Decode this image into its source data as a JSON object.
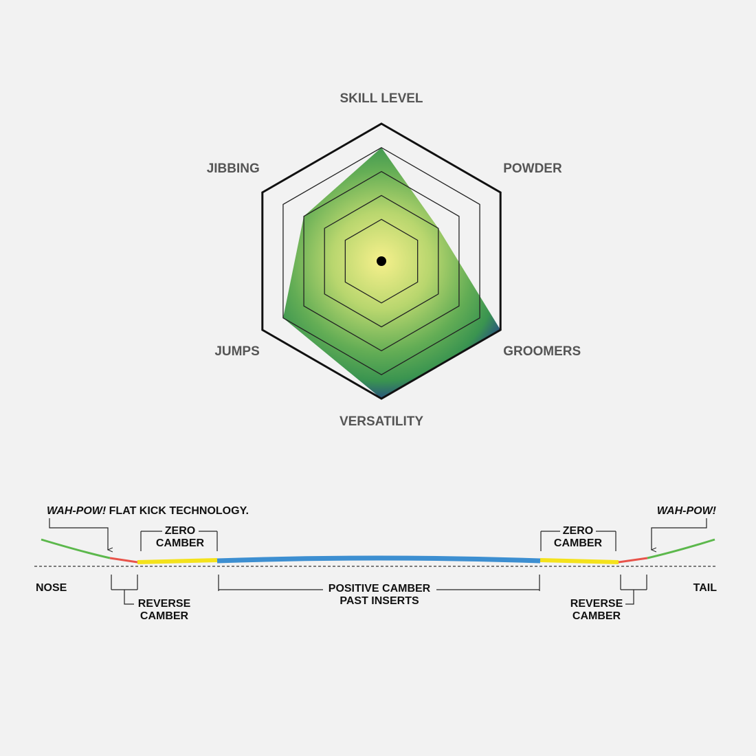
{
  "chart_data": {
    "type": "radar",
    "axes": [
      "SKILL LEVEL",
      "POWDER",
      "GROOMERS",
      "VERSATILITY",
      "JUMPS",
      "JIBBING"
    ],
    "values": [
      4,
      2,
      5,
      5,
      4,
      3
    ],
    "rlim": [
      0,
      5
    ],
    "rticks": [
      1,
      2,
      3,
      4,
      5
    ]
  },
  "camber_profile": {
    "nose_callout": {
      "emphasis": "WAH-POW!",
      "text": "FLAT KICK TECHNOLOGY."
    },
    "tail_callout": "WAH-POW!",
    "zero_camber_nose": [
      "ZERO",
      "CAMBER"
    ],
    "zero_camber_tail": [
      "ZERO",
      "CAMBER"
    ],
    "reverse_camber_nose": [
      "REVERSE",
      "CAMBER"
    ],
    "reverse_camber_tail": [
      "REVERSE",
      "CAMBER"
    ],
    "positive_camber": [
      "POSITIVE CAMBER",
      "PAST INSERTS"
    ],
    "nose": "NOSE",
    "tail": "TAIL"
  }
}
